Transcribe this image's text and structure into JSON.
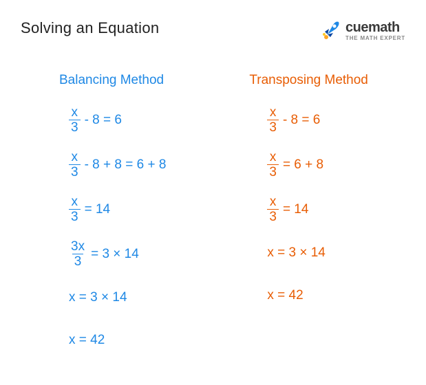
{
  "title": "Solving an Equation",
  "logo": {
    "main": "cuemath",
    "sub": "THE MATH EXPERT"
  },
  "colors": {
    "blue": "#1e88e5",
    "orange": "#e85d04",
    "title": "#222222",
    "bg": "#ffffff"
  },
  "left": {
    "heading": "Balancing Method",
    "steps": [
      {
        "frac": {
          "num": "x",
          "den": "3"
        },
        "rest": "- 8 = 6"
      },
      {
        "frac": {
          "num": "x",
          "den": "3"
        },
        "rest": "- 8 + 8 = 6 + 8"
      },
      {
        "frac": {
          "num": "x",
          "den": "3"
        },
        "rest": "= 14"
      },
      {
        "frac": {
          "num": "3x",
          "den": "3"
        },
        "rest": "= 3 × 14"
      },
      {
        "plain": "x = 3 × 14"
      },
      {
        "plain": "x = 42"
      }
    ]
  },
  "right": {
    "heading": "Transposing Method",
    "steps": [
      {
        "frac": {
          "num": "x",
          "den": "3"
        },
        "rest": "- 8 = 6"
      },
      {
        "frac": {
          "num": "x",
          "den": "3"
        },
        "rest": "= 6 + 8"
      },
      {
        "frac": {
          "num": "x",
          "den": "3"
        },
        "rest": "= 14"
      },
      {
        "plain": "x = 3 × 14"
      },
      {
        "plain": "x = 42"
      }
    ]
  }
}
